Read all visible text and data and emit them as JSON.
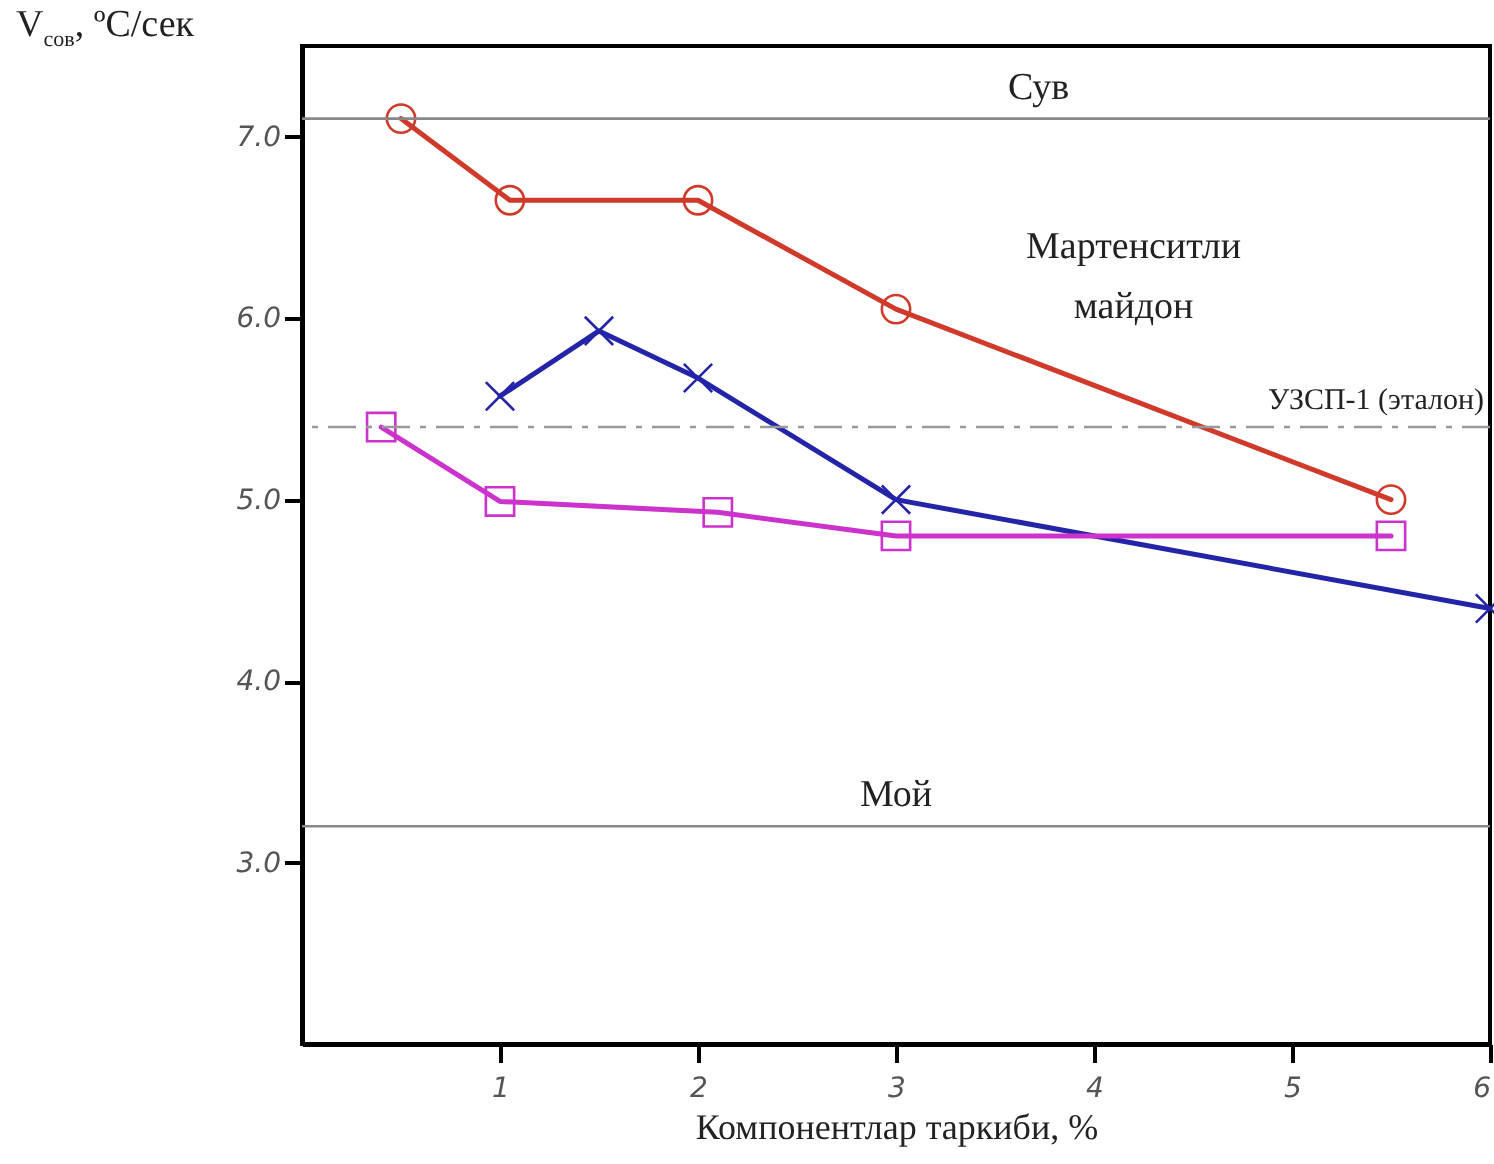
{
  "chart_data": {
    "type": "line",
    "xlabel": "Компонентлар таркиби, %",
    "ylabel": "V$_{сов}$, ºC/сек",
    "xlim": [
      0,
      6
    ],
    "ylim": [
      2.0,
      7.5
    ],
    "xticks": [
      1,
      2,
      3,
      4,
      5,
      6
    ],
    "yticks": [
      {
        "value": 3,
        "label": "3.0"
      },
      {
        "value": 4,
        "label": "4.0"
      },
      {
        "value": 5,
        "label": "5.0"
      },
      {
        "value": 6,
        "label": "6.0"
      },
      {
        "value": 7,
        "label": "7.0"
      }
    ],
    "grid": false,
    "line_style": "solid",
    "series": [
      {
        "color": "#d03a2a",
        "marker": "circle",
        "x": [
          0.5,
          1.05,
          2.0,
          3.0,
          5.5
        ],
        "values": [
          7.1,
          6.65,
          6.65,
          6.05,
          5.0
        ]
      },
      {
        "color": "#2424a8",
        "marker": "cross",
        "x": [
          1.0,
          1.5,
          2.0,
          3.0,
          6.0
        ],
        "values": [
          5.57,
          5.93,
          5.67,
          5.0,
          4.4
        ]
      },
      {
        "color": "#cc33cc",
        "marker": "square",
        "x": [
          0.4,
          1.0,
          2.1,
          3.0,
          5.5
        ],
        "values": [
          5.4,
          4.99,
          4.93,
          4.8,
          4.8
        ]
      }
    ],
    "ref_lines": [
      {
        "axis": "y",
        "value": 7.1,
        "label": "Сув",
        "color": "#888888",
        "line_style": "solid"
      },
      {
        "axis": "y",
        "value": 3.2,
        "label": "Мой",
        "color": "#888888",
        "line_style": "solid"
      },
      {
        "axis": "y",
        "value": 5.4,
        "label": "УЗСП-1 (эталон)",
        "color": "#999999",
        "line_style": "dashed"
      }
    ],
    "annotations": [
      "Мартенситли\nмайдон"
    ]
  }
}
